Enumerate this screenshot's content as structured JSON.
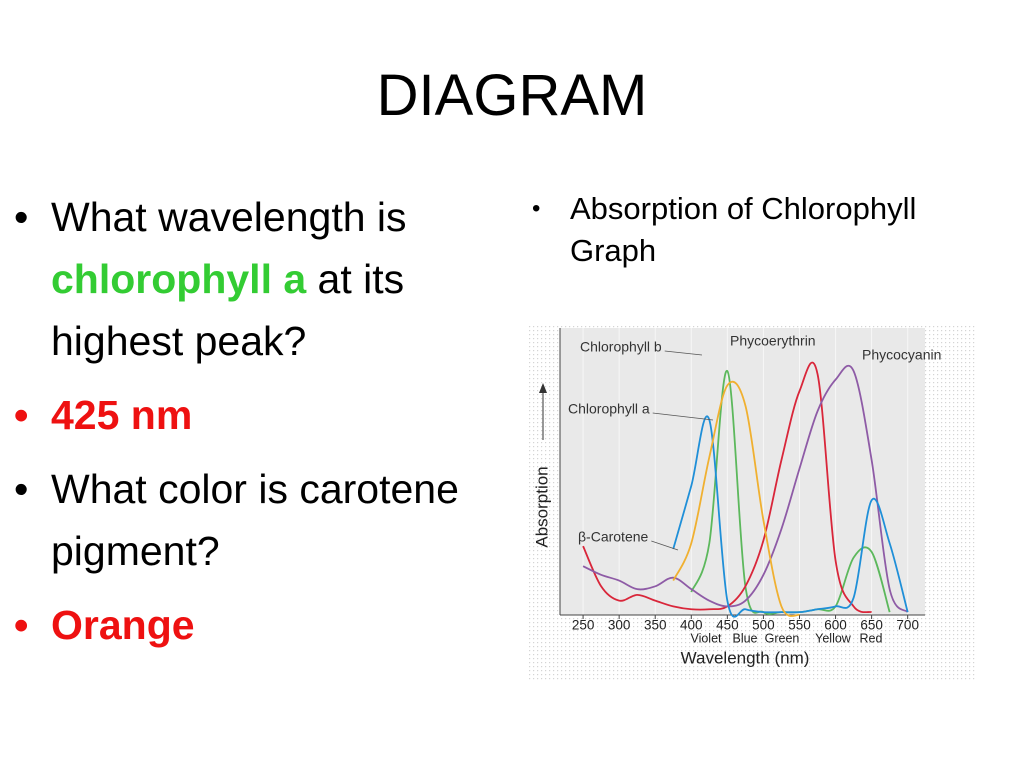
{
  "title": "DIAGRAM",
  "left": {
    "bullets": [
      {
        "parts": [
          "What wavelength is ",
          "chlorophyll a",
          " at its highest peak?"
        ]
      },
      {
        "parts": [
          "425 nm"
        ]
      },
      {
        "parts": [
          "What color is carotene pigment?"
        ]
      },
      {
        "parts": [
          "Orange"
        ]
      }
    ]
  },
  "right": {
    "bullet": "Absorption of Chlorophyll Graph"
  },
  "chart_data": {
    "type": "line",
    "xlabel": "Wavelength (nm)",
    "ylabel": "Absorption",
    "color_labels": [
      "Violet",
      "Blue",
      "Green",
      "Yellow",
      "Red"
    ],
    "x": [
      250,
      275,
      300,
      325,
      350,
      375,
      400,
      425,
      450,
      475,
      500,
      525,
      550,
      575,
      600,
      625,
      650,
      675,
      700
    ],
    "xlim": [
      218,
      724
    ],
    "xticks": [
      250,
      300,
      350,
      400,
      450,
      500,
      550,
      600,
      650,
      700
    ],
    "ylim": [
      0,
      100
    ],
    "series": [
      {
        "name": "Chlorophyll b",
        "color": "#5cb85c",
        "values": [
          null,
          null,
          null,
          null,
          null,
          null,
          8,
          25,
          85,
          10,
          1,
          1,
          1,
          2,
          3,
          20,
          22,
          1,
          null
        ]
      },
      {
        "name": "Phycoerythrin",
        "color": "#d9263a",
        "values": [
          24,
          10,
          5,
          7,
          5,
          3,
          2,
          2,
          3,
          10,
          26,
          54,
          78,
          84,
          19,
          3,
          1,
          null,
          null
        ]
      },
      {
        "name": "Phycocyanin",
        "color": "#8e5ba6",
        "values": [
          17,
          14,
          12,
          9,
          10,
          13,
          9,
          5,
          3,
          5,
          14,
          30,
          51,
          71,
          82,
          85,
          54,
          9,
          1
        ]
      },
      {
        "name": "Chlorophyll a",
        "color": "#1f8fd8",
        "values": [
          null,
          null,
          null,
          null,
          null,
          23,
          45,
          68,
          5,
          2,
          1,
          1,
          1,
          2,
          3,
          6,
          40,
          25,
          1
        ]
      },
      {
        "name": "β-Carotene",
        "color": "#f0b030",
        "values": [
          null,
          null,
          null,
          null,
          null,
          12,
          25,
          55,
          80,
          73,
          33,
          3,
          0,
          null,
          null,
          null,
          null,
          null,
          null
        ]
      }
    ]
  }
}
